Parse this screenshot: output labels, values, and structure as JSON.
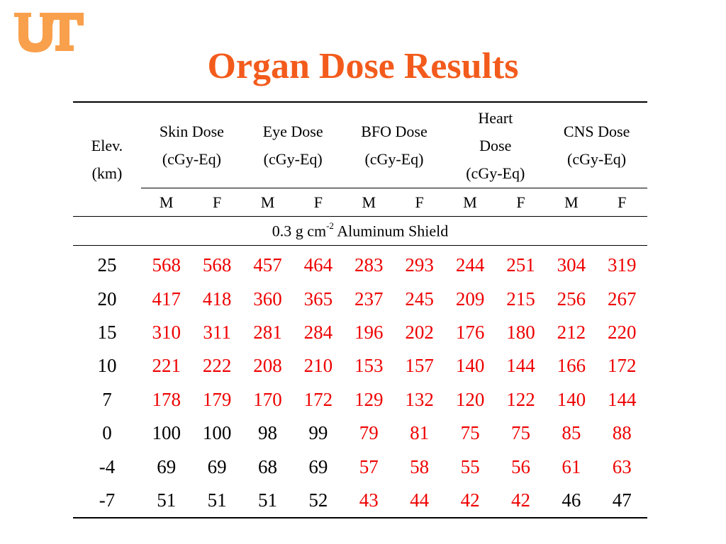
{
  "logo": {
    "text": "UT",
    "color": "#f9a04c"
  },
  "title": "Organ Dose Results",
  "colors": {
    "title": "#f35b1c",
    "highlight": "#ee0000",
    "normal": "#000000"
  },
  "table": {
    "elev_header": [
      "Elev.",
      "(km)"
    ],
    "groups": [
      {
        "lines": [
          "Skin Dose",
          "(cGy-Eq)"
        ]
      },
      {
        "lines": [
          "Eye Dose",
          "(cGy-Eq)"
        ]
      },
      {
        "lines": [
          "BFO Dose",
          "(cGy-Eq)"
        ]
      },
      {
        "lines": [
          "Heart",
          "Dose",
          "(cGy-Eq)"
        ]
      },
      {
        "lines": [
          "CNS Dose",
          "(cGy-Eq)"
        ]
      }
    ],
    "sex_labels": [
      "M",
      "F",
      "M",
      "F",
      "M",
      "F",
      "M",
      "F",
      "M",
      "F"
    ],
    "shield_label": {
      "prefix": "0.3 g cm",
      "sup": "-2",
      "suffix": " Aluminum Shield"
    },
    "rows": [
      {
        "elev": "25",
        "values": [
          "568",
          "568",
          "457",
          "464",
          "283",
          "293",
          "244",
          "251",
          "304",
          "319"
        ],
        "red": [
          1,
          1,
          1,
          1,
          1,
          1,
          1,
          1,
          1,
          1
        ]
      },
      {
        "elev": "20",
        "values": [
          "417",
          "418",
          "360",
          "365",
          "237",
          "245",
          "209",
          "215",
          "256",
          "267"
        ],
        "red": [
          1,
          1,
          1,
          1,
          1,
          1,
          1,
          1,
          1,
          1
        ]
      },
      {
        "elev": "15",
        "values": [
          "310",
          "311",
          "281",
          "284",
          "196",
          "202",
          "176",
          "180",
          "212",
          "220"
        ],
        "red": [
          1,
          1,
          1,
          1,
          1,
          1,
          1,
          1,
          1,
          1
        ]
      },
      {
        "elev": "10",
        "values": [
          "221",
          "222",
          "208",
          "210",
          "153",
          "157",
          "140",
          "144",
          "166",
          "172"
        ],
        "red": [
          1,
          1,
          1,
          1,
          1,
          1,
          1,
          1,
          1,
          1
        ]
      },
      {
        "elev": "7",
        "values": [
          "178",
          "179",
          "170",
          "172",
          "129",
          "132",
          "120",
          "122",
          "140",
          "144"
        ],
        "red": [
          1,
          1,
          1,
          1,
          1,
          1,
          1,
          1,
          1,
          1
        ]
      },
      {
        "elev": "0",
        "values": [
          "100",
          "100",
          "98",
          "99",
          "79",
          "81",
          "75",
          "75",
          "85",
          "88"
        ],
        "red": [
          0,
          0,
          0,
          0,
          1,
          1,
          1,
          1,
          1,
          1
        ]
      },
      {
        "elev": "-4",
        "values": [
          "69",
          "69",
          "68",
          "69",
          "57",
          "58",
          "55",
          "56",
          "61",
          "63"
        ],
        "red": [
          0,
          0,
          0,
          0,
          1,
          1,
          1,
          1,
          1,
          1
        ]
      },
      {
        "elev": "-7",
        "values": [
          "51",
          "51",
          "51",
          "52",
          "43",
          "44",
          "42",
          "42",
          "46",
          "47"
        ],
        "red": [
          0,
          0,
          0,
          0,
          1,
          1,
          1,
          1,
          0,
          0
        ]
      }
    ]
  }
}
